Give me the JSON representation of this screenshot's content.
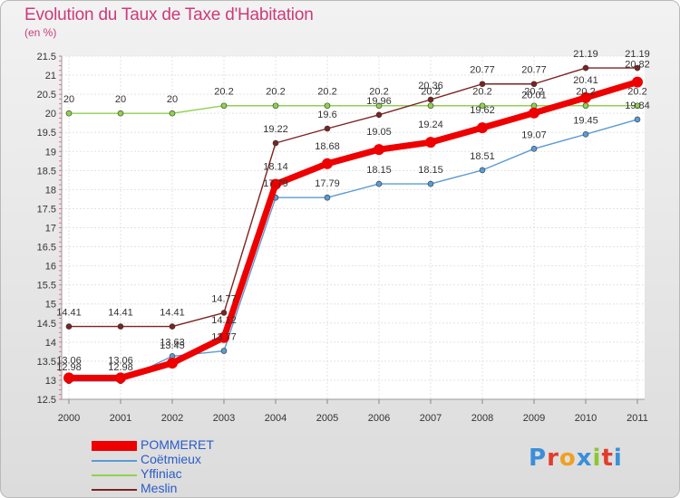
{
  "chart_data": {
    "type": "line",
    "title": "Evolution du Taux de Taxe d'Habitation",
    "subtitle": "(en %)",
    "xlabel": "",
    "ylabel": "",
    "x": [
      "2000",
      "2001",
      "2002",
      "2003",
      "2004",
      "2005",
      "2006",
      "2007",
      "2008",
      "2009",
      "2010",
      "2011"
    ],
    "ylim": [
      12.5,
      21.5
    ],
    "yticks": [
      "12.5",
      "13",
      "13.5",
      "14",
      "14.5",
      "15",
      "15.5",
      "16",
      "16.5",
      "17",
      "17.5",
      "18",
      "18.5",
      "19",
      "19.5",
      "20",
      "20.5",
      "21",
      "21.5"
    ],
    "grid": true,
    "legend_position": "bottom-left",
    "series": [
      {
        "name": "POMMERET",
        "color": "#ee0000",
        "values": [
          13.06,
          13.06,
          13.45,
          14.12,
          18.14,
          18.68,
          19.05,
          19.24,
          19.62,
          20.01,
          20.41,
          20.82
        ],
        "labels": [
          "13.06",
          "13.06",
          "13.45",
          "14.12",
          "18.14",
          "18.68",
          "19.05",
          "19.24",
          "19.62",
          "20.01",
          "20.41",
          "20.82"
        ]
      },
      {
        "name": "Coëtmieux",
        "color": "#5b9bd5",
        "values": [
          12.98,
          12.98,
          13.63,
          13.77,
          17.79,
          17.79,
          18.15,
          18.15,
          18.51,
          19.07,
          19.45,
          19.84
        ],
        "labels": [
          "12.98",
          "12.98",
          "13.63",
          "13.77",
          "17.79",
          "17.79",
          "18.15",
          "18.15",
          "18.51",
          "19.07",
          "19.45",
          "19.84"
        ]
      },
      {
        "name": "Yffiniac",
        "color": "#8fd14f",
        "values": [
          20,
          20,
          20,
          20.2,
          20.2,
          20.2,
          20.2,
          20.2,
          20.2,
          20.2,
          20.2,
          20.2
        ],
        "labels": [
          "20",
          "20",
          "20",
          "20.2",
          "20.2",
          "20.2",
          "20.2",
          "20.2",
          "20.2",
          "20.2",
          "20.2",
          "20.2"
        ]
      },
      {
        "name": "Meslin",
        "color": "#7b2323",
        "values": [
          14.41,
          14.41,
          14.41,
          14.77,
          19.22,
          19.6,
          19.96,
          20.36,
          20.77,
          20.77,
          21.19,
          21.19
        ],
        "labels": [
          "14.41",
          "14.41",
          "14.41",
          "14.77",
          "19.22",
          "19.6",
          "19.96",
          "20.36",
          "20.77",
          "20.77",
          "21.19",
          "21.19"
        ]
      }
    ]
  },
  "logo": {
    "text": "Proxiti",
    "letter_colors": [
      "#3a8fd8",
      "#e23c2c",
      "#f0a020",
      "#3a8fd8",
      "#8ac832",
      "#e23c2c",
      "#3a8fd8"
    ]
  }
}
